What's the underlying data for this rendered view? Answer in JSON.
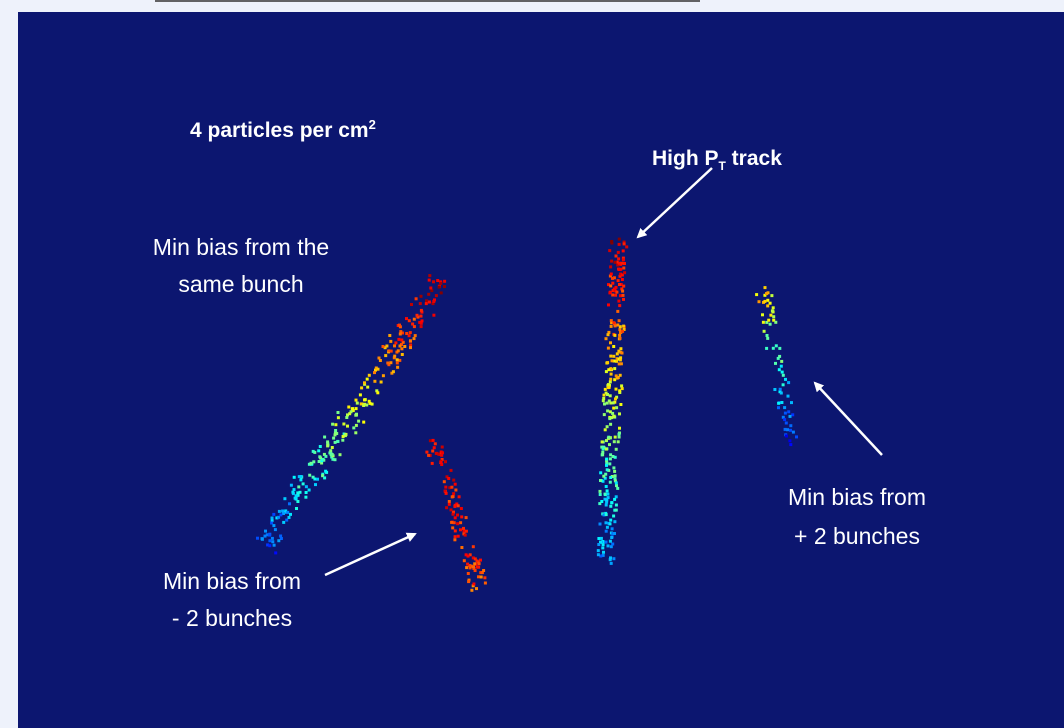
{
  "slide": {
    "density_label": {
      "text": "4 particles per cm",
      "superscript": "2"
    },
    "track_label": {
      "prefix": "High P",
      "subscript": "T",
      "suffix": " track"
    },
    "same_bunch_label": [
      "Min bias from the",
      "same bunch"
    ],
    "minus_bunches_label": [
      "Min bias from",
      "- 2 bunches"
    ],
    "plus_bunches_label": [
      "Min bias from",
      "+ 2 bunches"
    ]
  }
}
